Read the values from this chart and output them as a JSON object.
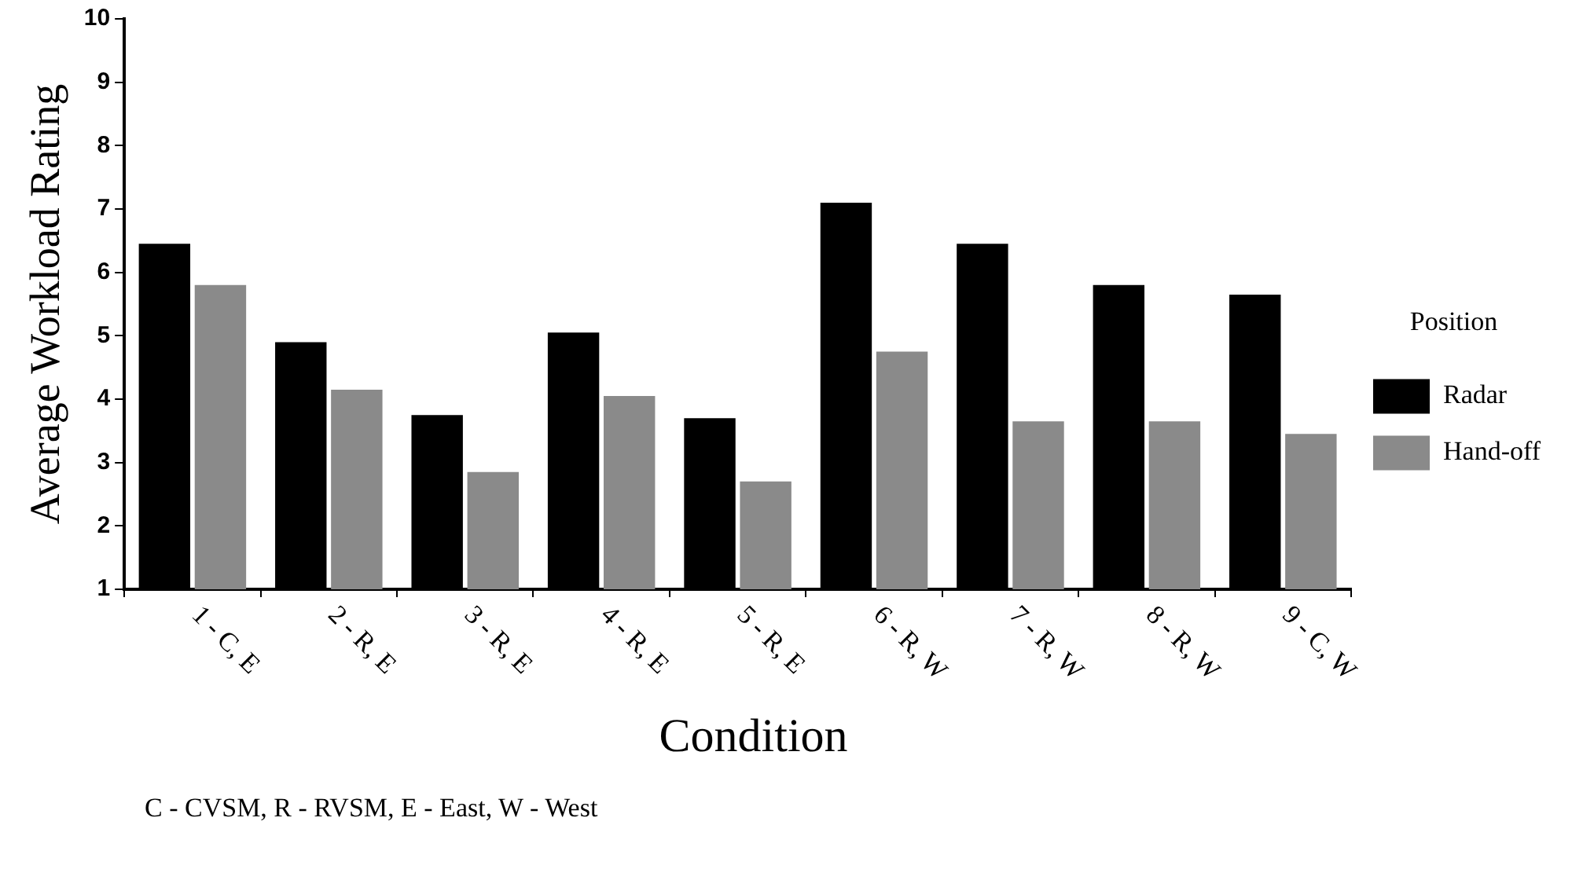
{
  "chart_data": {
    "type": "bar",
    "xlabel": "Condition",
    "ylabel": "Average Workload Rating",
    "legend_title": "Position",
    "categories": [
      "1 - C, E",
      "2 - R, E",
      "3 - R, E",
      "4 - R, E",
      "5 - R, E",
      "6 - R, W",
      "7 - R, W",
      "8 - R, W",
      "9 - C, W"
    ],
    "series": [
      {
        "name": "Radar",
        "color": "#000000",
        "values": [
          6.45,
          4.9,
          3.75,
          5.05,
          3.7,
          7.1,
          6.45,
          5.8,
          5.65
        ]
      },
      {
        "name": "Hand-off",
        "color": "#8a8a8a",
        "values": [
          5.8,
          4.15,
          2.85,
          4.05,
          2.7,
          4.75,
          3.65,
          3.65,
          3.45
        ]
      }
    ],
    "ylim": [
      1,
      10
    ],
    "yticks": [
      1,
      2,
      3,
      4,
      5,
      6,
      7,
      8,
      9,
      10
    ],
    "grid": false,
    "legend": "right",
    "annotations": [
      "C - CVSM, R - RVSM, E - East, W - West"
    ]
  }
}
